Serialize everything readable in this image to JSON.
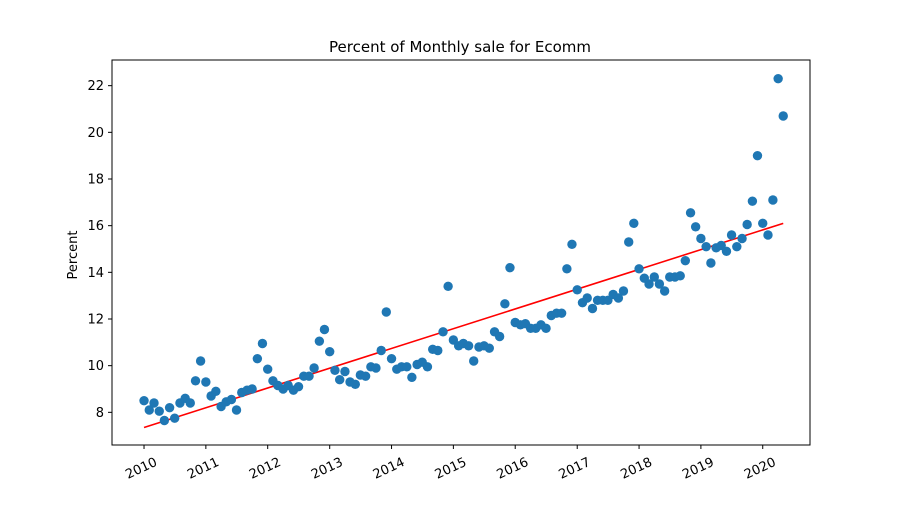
{
  "chart_data": {
    "type": "scatter",
    "title": "Percent of Monthly sale for Ecomm",
    "xlabel": "",
    "ylabel": "Percent",
    "x_ticks": [
      "2010",
      "2011",
      "2012",
      "2013",
      "2014",
      "2015",
      "2016",
      "2017",
      "2018",
      "2019",
      "2020"
    ],
    "y_ticks": [
      8,
      10,
      12,
      14,
      16,
      18,
      20,
      22
    ],
    "xlim": [
      "2009-06-26",
      "2020-10-06"
    ],
    "ylim": [
      6.6,
      23.1
    ],
    "grid": false,
    "legend": "none",
    "series": [
      {
        "kind": "scatter",
        "color": "#1f77b4",
        "points": [
          {
            "x": "2010-01",
            "y": 8.5
          },
          {
            "x": "2010-02",
            "y": 8.1
          },
          {
            "x": "2010-03",
            "y": 8.4
          },
          {
            "x": "2010-04",
            "y": 8.05
          },
          {
            "x": "2010-05",
            "y": 7.65
          },
          {
            "x": "2010-06",
            "y": 8.2
          },
          {
            "x": "2010-07",
            "y": 7.75
          },
          {
            "x": "2010-08",
            "y": 8.4
          },
          {
            "x": "2010-09",
            "y": 8.6
          },
          {
            "x": "2010-10",
            "y": 8.4
          },
          {
            "x": "2010-11",
            "y": 9.35
          },
          {
            "x": "2010-12",
            "y": 10.2
          },
          {
            "x": "2011-01",
            "y": 9.3
          },
          {
            "x": "2011-02",
            "y": 8.7
          },
          {
            "x": "2011-03",
            "y": 8.9
          },
          {
            "x": "2011-04",
            "y": 8.25
          },
          {
            "x": "2011-05",
            "y": 8.45
          },
          {
            "x": "2011-06",
            "y": 8.55
          },
          {
            "x": "2011-07",
            "y": 8.1
          },
          {
            "x": "2011-08",
            "y": 8.85
          },
          {
            "x": "2011-09",
            "y": 8.95
          },
          {
            "x": "2011-10",
            "y": 9.0
          },
          {
            "x": "2011-11",
            "y": 10.3
          },
          {
            "x": "2011-12",
            "y": 10.95
          },
          {
            "x": "2012-01",
            "y": 9.85
          },
          {
            "x": "2012-02",
            "y": 9.35
          },
          {
            "x": "2012-03",
            "y": 9.15
          },
          {
            "x": "2012-04",
            "y": 9.0
          },
          {
            "x": "2012-05",
            "y": 9.15
          },
          {
            "x": "2012-06",
            "y": 8.95
          },
          {
            "x": "2012-07",
            "y": 9.1
          },
          {
            "x": "2012-08",
            "y": 9.55
          },
          {
            "x": "2012-09",
            "y": 9.55
          },
          {
            "x": "2012-10",
            "y": 9.9
          },
          {
            "x": "2012-11",
            "y": 11.05
          },
          {
            "x": "2012-12",
            "y": 11.55
          },
          {
            "x": "2013-01",
            "y": 10.6
          },
          {
            "x": "2013-02",
            "y": 9.8
          },
          {
            "x": "2013-03",
            "y": 9.4
          },
          {
            "x": "2013-04",
            "y": 9.75
          },
          {
            "x": "2013-05",
            "y": 9.3
          },
          {
            "x": "2013-06",
            "y": 9.2
          },
          {
            "x": "2013-07",
            "y": 9.6
          },
          {
            "x": "2013-08",
            "y": 9.55
          },
          {
            "x": "2013-09",
            "y": 9.95
          },
          {
            "x": "2013-10",
            "y": 9.9
          },
          {
            "x": "2013-11",
            "y": 10.65
          },
          {
            "x": "2013-12",
            "y": 12.3
          },
          {
            "x": "2014-01",
            "y": 10.3
          },
          {
            "x": "2014-02",
            "y": 9.85
          },
          {
            "x": "2014-03",
            "y": 9.95
          },
          {
            "x": "2014-04",
            "y": 9.95
          },
          {
            "x": "2014-05",
            "y": 9.5
          },
          {
            "x": "2014-06",
            "y": 10.05
          },
          {
            "x": "2014-07",
            "y": 10.15
          },
          {
            "x": "2014-08",
            "y": 9.95
          },
          {
            "x": "2014-09",
            "y": 10.7
          },
          {
            "x": "2014-10",
            "y": 10.65
          },
          {
            "x": "2014-11",
            "y": 11.45
          },
          {
            "x": "2014-12",
            "y": 13.4
          },
          {
            "x": "2015-01",
            "y": 11.1
          },
          {
            "x": "2015-02",
            "y": 10.85
          },
          {
            "x": "2015-03",
            "y": 10.95
          },
          {
            "x": "2015-04",
            "y": 10.85
          },
          {
            "x": "2015-05",
            "y": 10.2
          },
          {
            "x": "2015-06",
            "y": 10.8
          },
          {
            "x": "2015-07",
            "y": 10.85
          },
          {
            "x": "2015-08",
            "y": 10.75
          },
          {
            "x": "2015-09",
            "y": 11.45
          },
          {
            "x": "2015-10",
            "y": 11.25
          },
          {
            "x": "2015-11",
            "y": 12.65
          },
          {
            "x": "2015-12",
            "y": 14.2
          },
          {
            "x": "2016-01",
            "y": 11.85
          },
          {
            "x": "2016-02",
            "y": 11.75
          },
          {
            "x": "2016-03",
            "y": 11.8
          },
          {
            "x": "2016-04",
            "y": 11.6
          },
          {
            "x": "2016-05",
            "y": 11.6
          },
          {
            "x": "2016-06",
            "y": 11.75
          },
          {
            "x": "2016-07",
            "y": 11.6
          },
          {
            "x": "2016-08",
            "y": 12.15
          },
          {
            "x": "2016-09",
            "y": 12.25
          },
          {
            "x": "2016-10",
            "y": 12.25
          },
          {
            "x": "2016-11",
            "y": 14.15
          },
          {
            "x": "2016-12",
            "y": 15.2
          },
          {
            "x": "2017-01",
            "y": 13.25
          },
          {
            "x": "2017-02",
            "y": 12.7
          },
          {
            "x": "2017-03",
            "y": 12.9
          },
          {
            "x": "2017-04",
            "y": 12.45
          },
          {
            "x": "2017-05",
            "y": 12.8
          },
          {
            "x": "2017-06",
            "y": 12.8
          },
          {
            "x": "2017-07",
            "y": 12.8
          },
          {
            "x": "2017-08",
            "y": 13.05
          },
          {
            "x": "2017-09",
            "y": 12.9
          },
          {
            "x": "2017-10",
            "y": 13.2
          },
          {
            "x": "2017-11",
            "y": 15.3
          },
          {
            "x": "2017-12",
            "y": 16.1
          },
          {
            "x": "2018-01",
            "y": 14.15
          },
          {
            "x": "2018-02",
            "y": 13.75
          },
          {
            "x": "2018-03",
            "y": 13.5
          },
          {
            "x": "2018-04",
            "y": 13.8
          },
          {
            "x": "2018-05",
            "y": 13.5
          },
          {
            "x": "2018-06",
            "y": 13.2
          },
          {
            "x": "2018-07",
            "y": 13.8
          },
          {
            "x": "2018-08",
            "y": 13.8
          },
          {
            "x": "2018-09",
            "y": 13.85
          },
          {
            "x": "2018-10",
            "y": 14.5
          },
          {
            "x": "2018-11",
            "y": 16.55
          },
          {
            "x": "2018-12",
            "y": 15.95
          },
          {
            "x": "2019-01",
            "y": 15.45
          },
          {
            "x": "2019-02",
            "y": 15.1
          },
          {
            "x": "2019-03",
            "y": 14.4
          },
          {
            "x": "2019-04",
            "y": 15.05
          },
          {
            "x": "2019-05",
            "y": 15.15
          },
          {
            "x": "2019-06",
            "y": 14.9
          },
          {
            "x": "2019-07",
            "y": 15.6
          },
          {
            "x": "2019-08",
            "y": 15.1
          },
          {
            "x": "2019-09",
            "y": 15.45
          },
          {
            "x": "2019-10",
            "y": 16.05
          },
          {
            "x": "2019-11",
            "y": 17.05
          },
          {
            "x": "2019-12",
            "y": 19.0
          },
          {
            "x": "2020-01",
            "y": 16.1
          },
          {
            "x": "2020-02",
            "y": 15.6
          },
          {
            "x": "2020-03",
            "y": 17.1
          },
          {
            "x": "2020-04",
            "y": 22.3
          },
          {
            "x": "2020-05",
            "y": 20.7
          }
        ]
      },
      {
        "kind": "line",
        "color": "#ff0000",
        "points": [
          {
            "x": "2010-01",
            "y": 7.35
          },
          {
            "x": "2020-05",
            "y": 16.1
          }
        ]
      }
    ]
  }
}
